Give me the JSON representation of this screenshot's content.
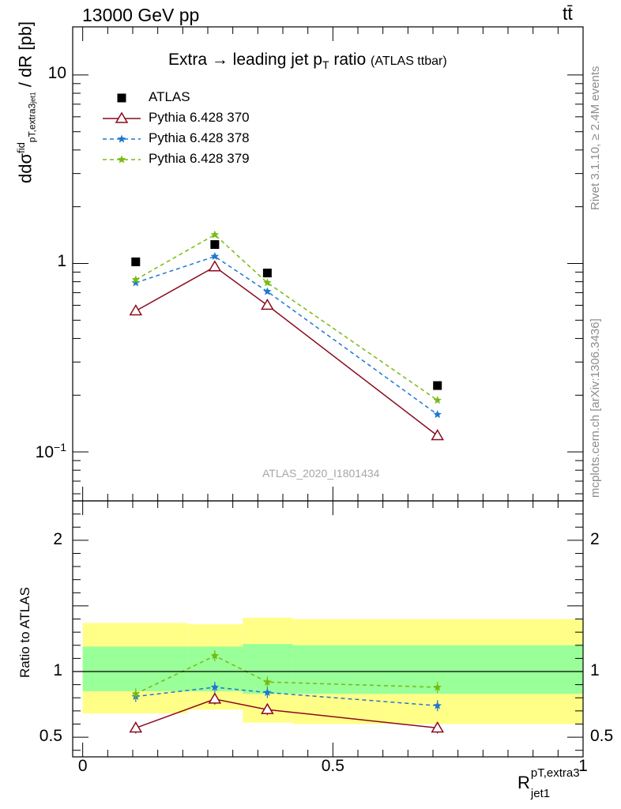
{
  "header": {
    "energy": "13000 GeV pp",
    "process": "tt̄"
  },
  "side": {
    "rivet": "Rivet 3.1.10, ≥ 2.4M events",
    "mcplots": "mcplots.cern.ch [arXiv:1306.3436]"
  },
  "chart_data": [
    {
      "type": "scatter",
      "panel": "main",
      "title": "Extra → leading jet p",
      "title_sub": "T",
      "title_suffix": " ratio",
      "title_note": "(ATLAS ttbar)",
      "watermark": "ATLAS_2020_I1801434",
      "ylabel": "d dσ/dR [pb]",
      "ylabel_parts": {
        "d_top": "d",
        "dsig": "dσ",
        "sup": "fid",
        "sub": "pT,extra3",
        "subsub": "jet1",
        "d_bot": "d",
        "R": "R",
        "unit": " [pb]"
      },
      "yscale": "log",
      "ylim": [
        0.055,
        18
      ],
      "xlim": [
        -0.02,
        1.0
      ],
      "yticks": [
        {
          "v": 10,
          "label": "10"
        },
        {
          "v": 1,
          "label": "1"
        },
        {
          "v": 0.1,
          "label": "10",
          "sup": "−1"
        }
      ],
      "legend_position": "top-left",
      "series": [
        {
          "name": "ATLAS",
          "color": "#000000",
          "marker": "square",
          "line": "none",
          "x": [
            0.106,
            0.264,
            0.369,
            0.709
          ],
          "y": [
            1.02,
            1.26,
            0.89,
            0.225
          ]
        },
        {
          "name": "Pythia 6.428 370",
          "color": "#8b0a1e",
          "marker": "triangle",
          "line": "solid",
          "x": [
            0.106,
            0.264,
            0.369,
            0.709
          ],
          "y": [
            0.56,
            0.96,
            0.6,
            0.122
          ]
        },
        {
          "name": "Pythia 6.428 378",
          "color": "#1f77d0",
          "marker": "star",
          "line": "dashed",
          "x": [
            0.106,
            0.264,
            0.369,
            0.709
          ],
          "y": [
            0.79,
            1.09,
            0.71,
            0.158
          ]
        },
        {
          "name": "Pythia 6.428 379",
          "color": "#77bb11",
          "marker": "star",
          "line": "dashed",
          "x": [
            0.106,
            0.264,
            0.369,
            0.709
          ],
          "y": [
            0.82,
            1.42,
            0.79,
            0.188
          ]
        }
      ]
    },
    {
      "type": "scatter",
      "panel": "ratio",
      "ylabel": "Ratio to ATLAS",
      "ylim": [
        0.35,
        2.3
      ],
      "xlim": [
        -0.02,
        1.0
      ],
      "yticks": [
        0.5,
        1,
        2
      ],
      "xticks": [
        {
          "v": 0,
          "label": "0"
        },
        {
          "v": 0.5,
          "label": "0.5"
        },
        {
          "v": 1,
          "label": "1"
        }
      ],
      "xlabel_parts": {
        "R": "R",
        "sup": "pT,extra3",
        "sub": "jet1"
      },
      "bands": {
        "yellow_color": "#ffff88",
        "green_color": "#99ff99",
        "bins": [
          {
            "x": [
              0.0,
              0.21
            ],
            "yellow": [
              0.68,
              1.37
            ],
            "green": [
              0.85,
              1.19
            ]
          },
          {
            "x": [
              0.21,
              0.32
            ],
            "yellow": [
              0.71,
              1.36
            ],
            "green": [
              0.85,
              1.19
            ]
          },
          {
            "x": [
              0.32,
              0.42
            ],
            "yellow": [
              0.61,
              1.41
            ],
            "green": [
              0.83,
              1.21
            ]
          },
          {
            "x": [
              0.42,
              1.0
            ],
            "yellow": [
              0.6,
              1.4
            ],
            "green": [
              0.83,
              1.2
            ]
          }
        ]
      },
      "series": [
        {
          "name": "Pythia 6.428 370",
          "color": "#8b0a1e",
          "marker": "triangle",
          "line": "solid",
          "x": [
            0.106,
            0.264,
            0.369,
            0.709
          ],
          "y": [
            0.57,
            0.79,
            0.71,
            0.57
          ]
        },
        {
          "name": "Pythia 6.428 378",
          "color": "#1f77d0",
          "marker": "star",
          "line": "dashed",
          "x": [
            0.106,
            0.264,
            0.369,
            0.709
          ],
          "y": [
            0.81,
            0.88,
            0.84,
            0.74
          ]
        },
        {
          "name": "Pythia 6.428 379",
          "color": "#77bb11",
          "marker": "star",
          "line": "dashed",
          "x": [
            0.106,
            0.264,
            0.369,
            0.709
          ],
          "y": [
            0.83,
            1.12,
            0.92,
            0.88
          ]
        }
      ]
    }
  ]
}
